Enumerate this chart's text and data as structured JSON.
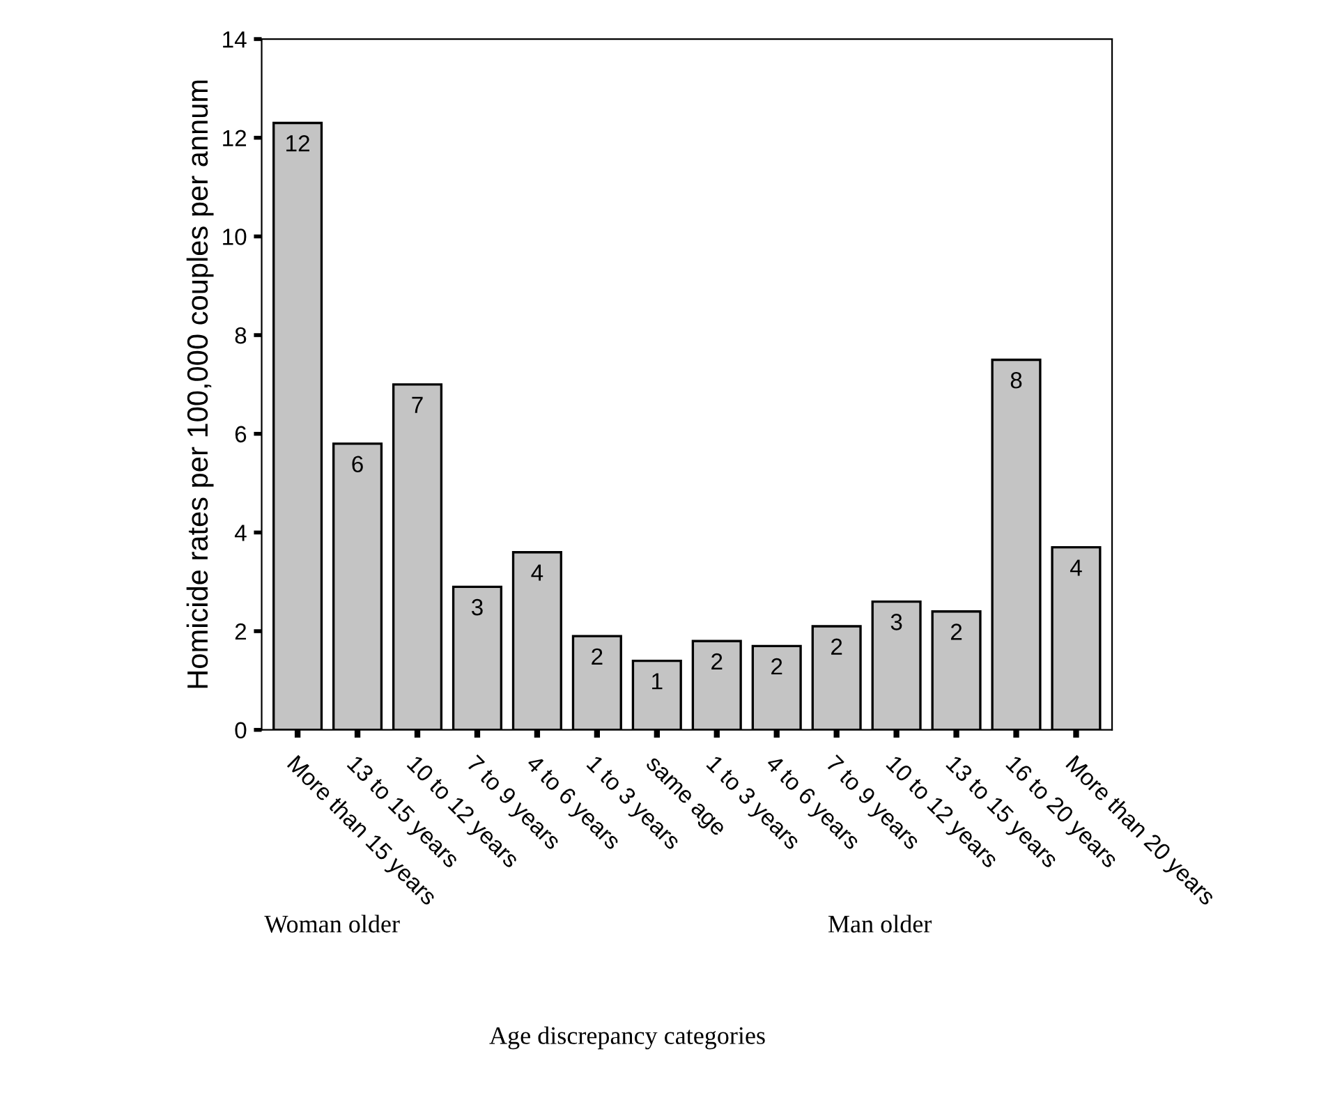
{
  "chart_data": {
    "type": "bar",
    "categories": [
      "More than 15 years",
      "13 to 15 years",
      "10 to 12 years",
      "7 to 9 years",
      "4 to 6 years",
      "1 to 3 years",
      "same age",
      "1 to 3 years",
      "4 to 6 years",
      "7 to 9 years",
      "10 to 12 years",
      "13 to 15 years",
      "16 to 20 years",
      "More than 20 years"
    ],
    "values": [
      12.3,
      5.8,
      7.0,
      2.9,
      3.6,
      1.9,
      1.4,
      1.8,
      1.7,
      2.1,
      2.6,
      2.4,
      7.5,
      3.7
    ],
    "value_labels": [
      "12",
      "6",
      "7",
      "3",
      "4",
      "2",
      "1",
      "2",
      "2",
      "2",
      "3",
      "2",
      "8",
      "4"
    ],
    "color": "#c4c4c4",
    "ylabel": "Homicide rates per 100,000 couples per annum",
    "xlabel": "Age discrepancy categories",
    "annotations": [
      "Woman older",
      "Man older"
    ],
    "ylim": [
      0,
      14
    ],
    "yticks": [
      0,
      2,
      4,
      6,
      8,
      10,
      12,
      14
    ],
    "grid": false,
    "legend": false
  }
}
